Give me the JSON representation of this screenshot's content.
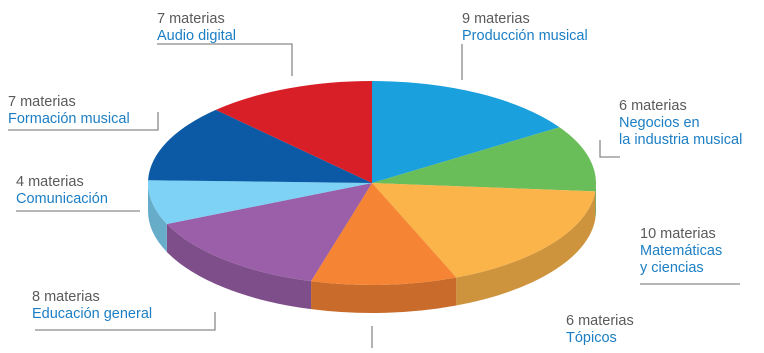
{
  "chart_data": {
    "type": "pie",
    "unit_label": "materias",
    "slices": [
      {
        "name": "Producción musical",
        "count_label": "9 materias",
        "value": 9,
        "color": "#1aa0dc"
      },
      {
        "name": "Negocios en la industria musical",
        "name_lines": [
          "Negocios en",
          "la industria musical"
        ],
        "count_label": "6 materias",
        "value": 6,
        "color": "#6abe5a"
      },
      {
        "name": "Matemáticas y ciencias",
        "name_lines": [
          "Matemáticas",
          "y ciencias"
        ],
        "count_label": "10 materias",
        "value": 10,
        "color": "#fbb44a"
      },
      {
        "name": "Tópicos",
        "count_label": "6 materias",
        "value": 6,
        "color": "#f58434"
      },
      {
        "name": "Educación general",
        "count_label": "8 materias",
        "value": 8,
        "color": "#9a5fa8"
      },
      {
        "name": "Comunicación",
        "count_label": "4 materias",
        "value": 4,
        "color": "#7dd2f5"
      },
      {
        "name": "Formación musical",
        "count_label": "7 materias",
        "value": 7,
        "color": "#0c5aa6"
      },
      {
        "name": "Audio digital",
        "count_label": "7 materias",
        "value": 7,
        "color": "#d81f27"
      }
    ]
  }
}
